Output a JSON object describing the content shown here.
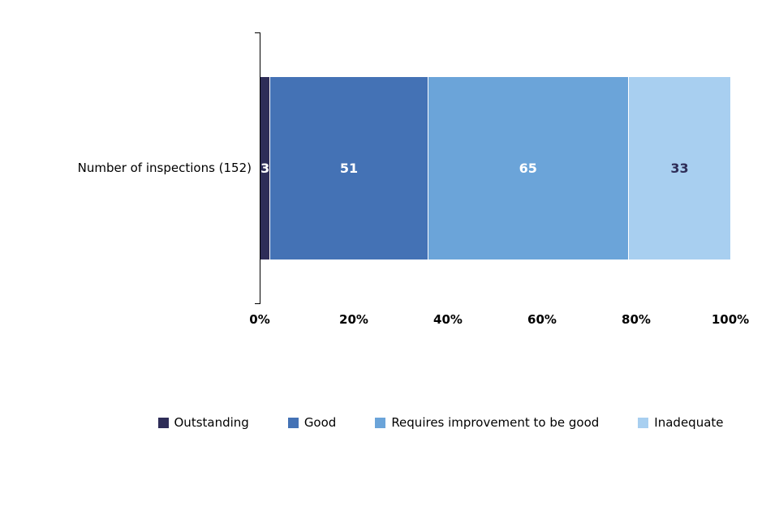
{
  "chart_data": {
    "type": "bar",
    "orientation": "horizontal",
    "stacked": true,
    "percent_scale": true,
    "title": "",
    "category_label": "Number of inspections (152)",
    "total": 152,
    "series": [
      {
        "name": "Outstanding",
        "value": 3,
        "color": "#2E2D58",
        "label_color": "#FFFFFF"
      },
      {
        "name": "Good",
        "value": 51,
        "color": "#4472B5",
        "label_color": "#FFFFFF"
      },
      {
        "name": "Requires improvement to be good",
        "value": 65,
        "color": "#6BA4D9",
        "label_color": "#FFFFFF"
      },
      {
        "name": "Inadequate",
        "value": 33,
        "color": "#A8CFF0",
        "label_color": "#2E2D58"
      }
    ],
    "x_ticks": [
      "0%",
      "20%",
      "40%",
      "60%",
      "80%",
      "100%"
    ],
    "xlim": [
      0,
      100
    ],
    "grid": false,
    "legend_position": "bottom"
  }
}
